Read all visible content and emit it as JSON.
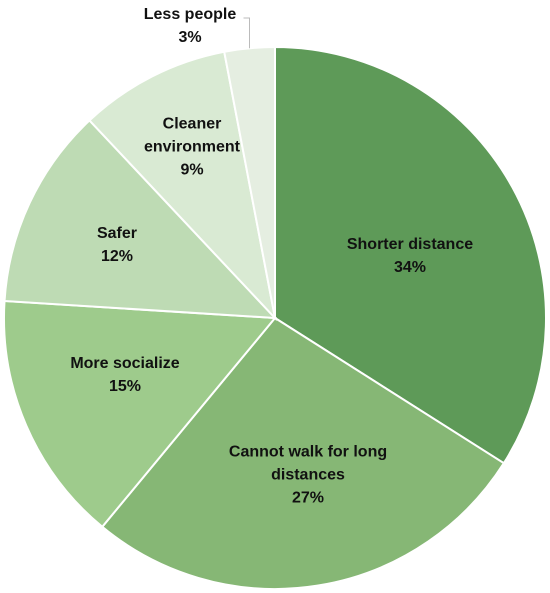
{
  "chart_data": {
    "type": "pie",
    "categories": [
      "Shorter distance",
      "Cannot walk for long distances",
      "More socialize",
      "Safer",
      "Cleaner environment",
      "Less people"
    ],
    "values": [
      34,
      27,
      15,
      12,
      9,
      3
    ],
    "value_labels": [
      "34%",
      "27%",
      "15%",
      "12%",
      "9%",
      "3%"
    ],
    "colors": [
      "#5e9a58",
      "#86b775",
      "#9ecb8c",
      "#bedbb4",
      "#d9ead3",
      "#e5eee1"
    ]
  }
}
